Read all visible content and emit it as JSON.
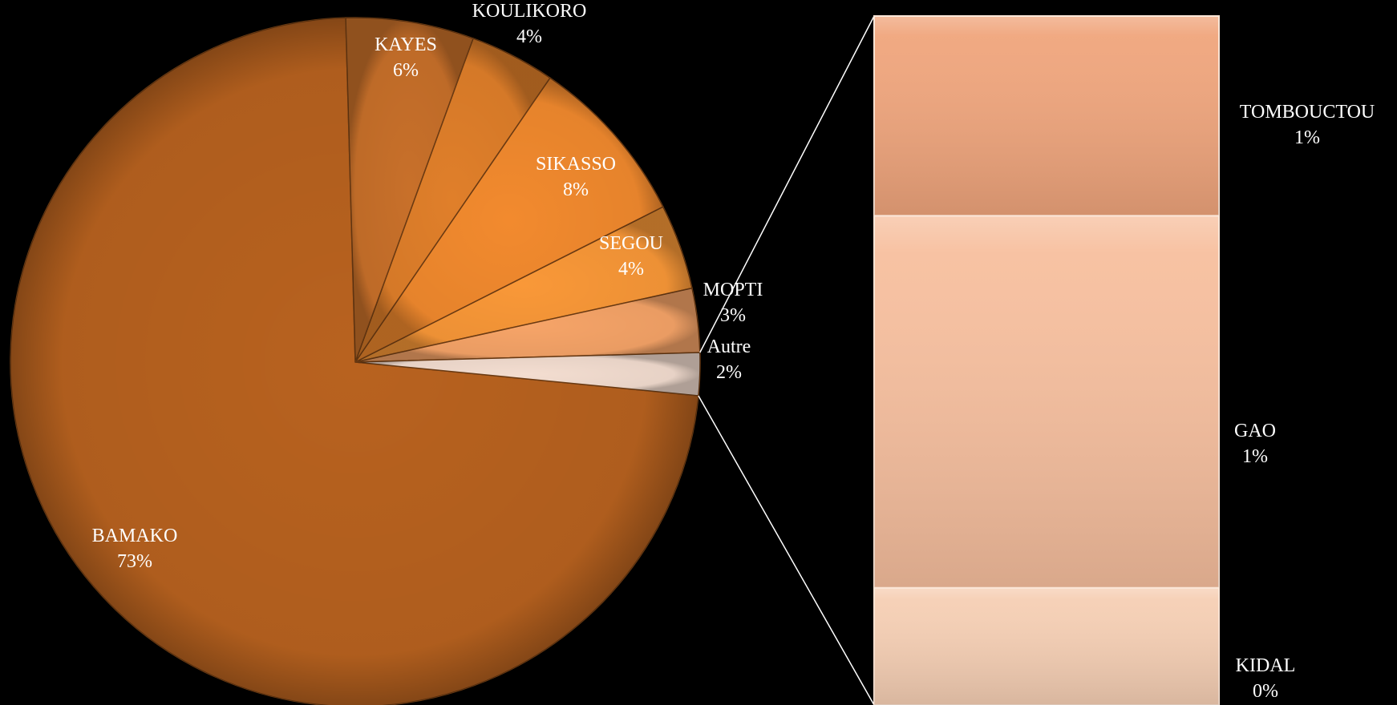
{
  "chart_data": {
    "type": "bar-of-pie",
    "pie": {
      "slices": [
        {
          "label": "BAMAKO",
          "value": 73,
          "value_label": "73%",
          "color": "#b8621f"
        },
        {
          "label": "KAYES",
          "value": 6,
          "value_label": "6%",
          "color": "#c8702a"
        },
        {
          "label": "KOULIKORO",
          "value": 4,
          "value_label": "4%",
          "color": "#e07f2a"
        },
        {
          "label": "SIKASSO",
          "value": 8,
          "value_label": "8%",
          "color": "#f28a2e"
        },
        {
          "label": "SEGOU",
          "value": 4,
          "value_label": "4%",
          "color": "#f99838"
        },
        {
          "label": "MOPTI",
          "value": 3,
          "value_label": "3%",
          "color": "#f6a468"
        },
        {
          "label": "Autre",
          "value": 2,
          "value_label": "2%",
          "color": "#f3ddd0"
        }
      ]
    },
    "bar": {
      "segments": [
        {
          "label": "TOMBOUCTOU",
          "value": 1,
          "value_label": "1%",
          "color": "#f0a57c"
        },
        {
          "label": "GAO",
          "value": 1,
          "value_label": "1%",
          "color": "#f7bf9e"
        },
        {
          "label": "KIDAL",
          "value": 0,
          "value_label": "0%",
          "color": "#f6cfb4"
        }
      ]
    },
    "text_color": "#ffffff"
  }
}
